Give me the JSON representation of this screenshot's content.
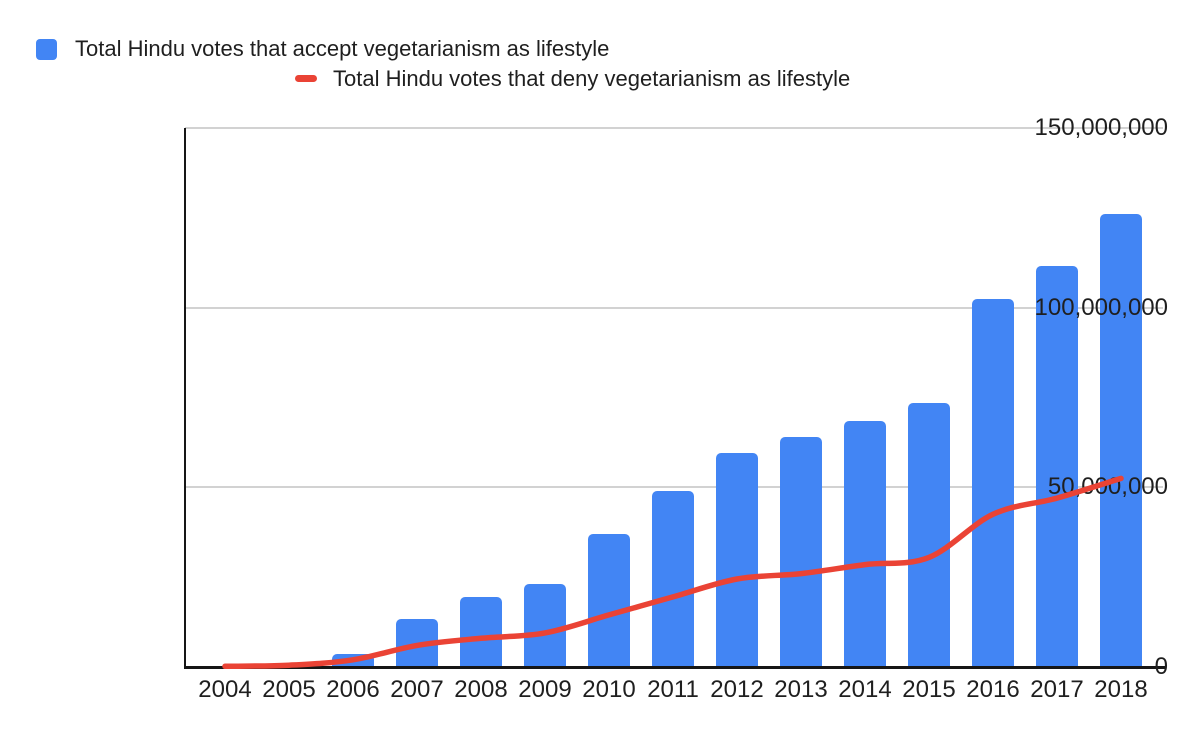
{
  "legend": {
    "items": [
      {
        "label": "Total Hindu votes that accept vegetarianism as lifestyle",
        "color": "#4285F4",
        "swatch": "square"
      },
      {
        "label": "Total Hindu votes that deny vegetarianism as lifestyle",
        "color": "#EA4335",
        "swatch": "line"
      }
    ]
  },
  "axis": {
    "y_tick_labels": [
      "0",
      "50,000,000",
      "100,000,000",
      "150,000,000"
    ],
    "x_tick_labels": [
      "2004",
      "2005",
      "2006",
      "2007",
      "2008",
      "2009",
      "2010",
      "2011",
      "2012",
      "2013",
      "2014",
      "2015",
      "2016",
      "2017",
      "2018"
    ]
  },
  "colors": {
    "bar": "#4285F4",
    "line": "#EA4335",
    "grid": "#d2d2d2",
    "axis": "#161616",
    "text": "#1f1f1f",
    "background": "#ffffff"
  },
  "chart_data": {
    "type": "bar",
    "subtype": "combo-bar-line",
    "title": "",
    "xlabel": "",
    "ylabel": "",
    "grid": true,
    "legend_position": "top",
    "ylim": [
      0,
      150000000
    ],
    "yticks": [
      0,
      50000000,
      100000000,
      150000000
    ],
    "categories": [
      "2004",
      "2005",
      "2006",
      "2007",
      "2008",
      "2009",
      "2010",
      "2011",
      "2012",
      "2013",
      "2014",
      "2015",
      "2016",
      "2017",
      "2018"
    ],
    "series": [
      {
        "name": "Total Hindu votes that accept vegetarianism as lifestyle",
        "type": "bar",
        "color": "#4285F4",
        "values": [
          0,
          0,
          3500000,
          13500000,
          19500000,
          23000000,
          37000000,
          49000000,
          59500000,
          64000000,
          68500000,
          73500000,
          102500000,
          111500000,
          126000000
        ]
      },
      {
        "name": "Total Hindu votes that deny vegetarianism as lifestyle",
        "type": "line",
        "color": "#EA4335",
        "values": [
          200000,
          500000,
          2000000,
          6000000,
          8000000,
          9500000,
          14500000,
          19500000,
          24500000,
          26000000,
          28500000,
          30500000,
          42500000,
          47000000,
          52500000
        ]
      }
    ]
  }
}
